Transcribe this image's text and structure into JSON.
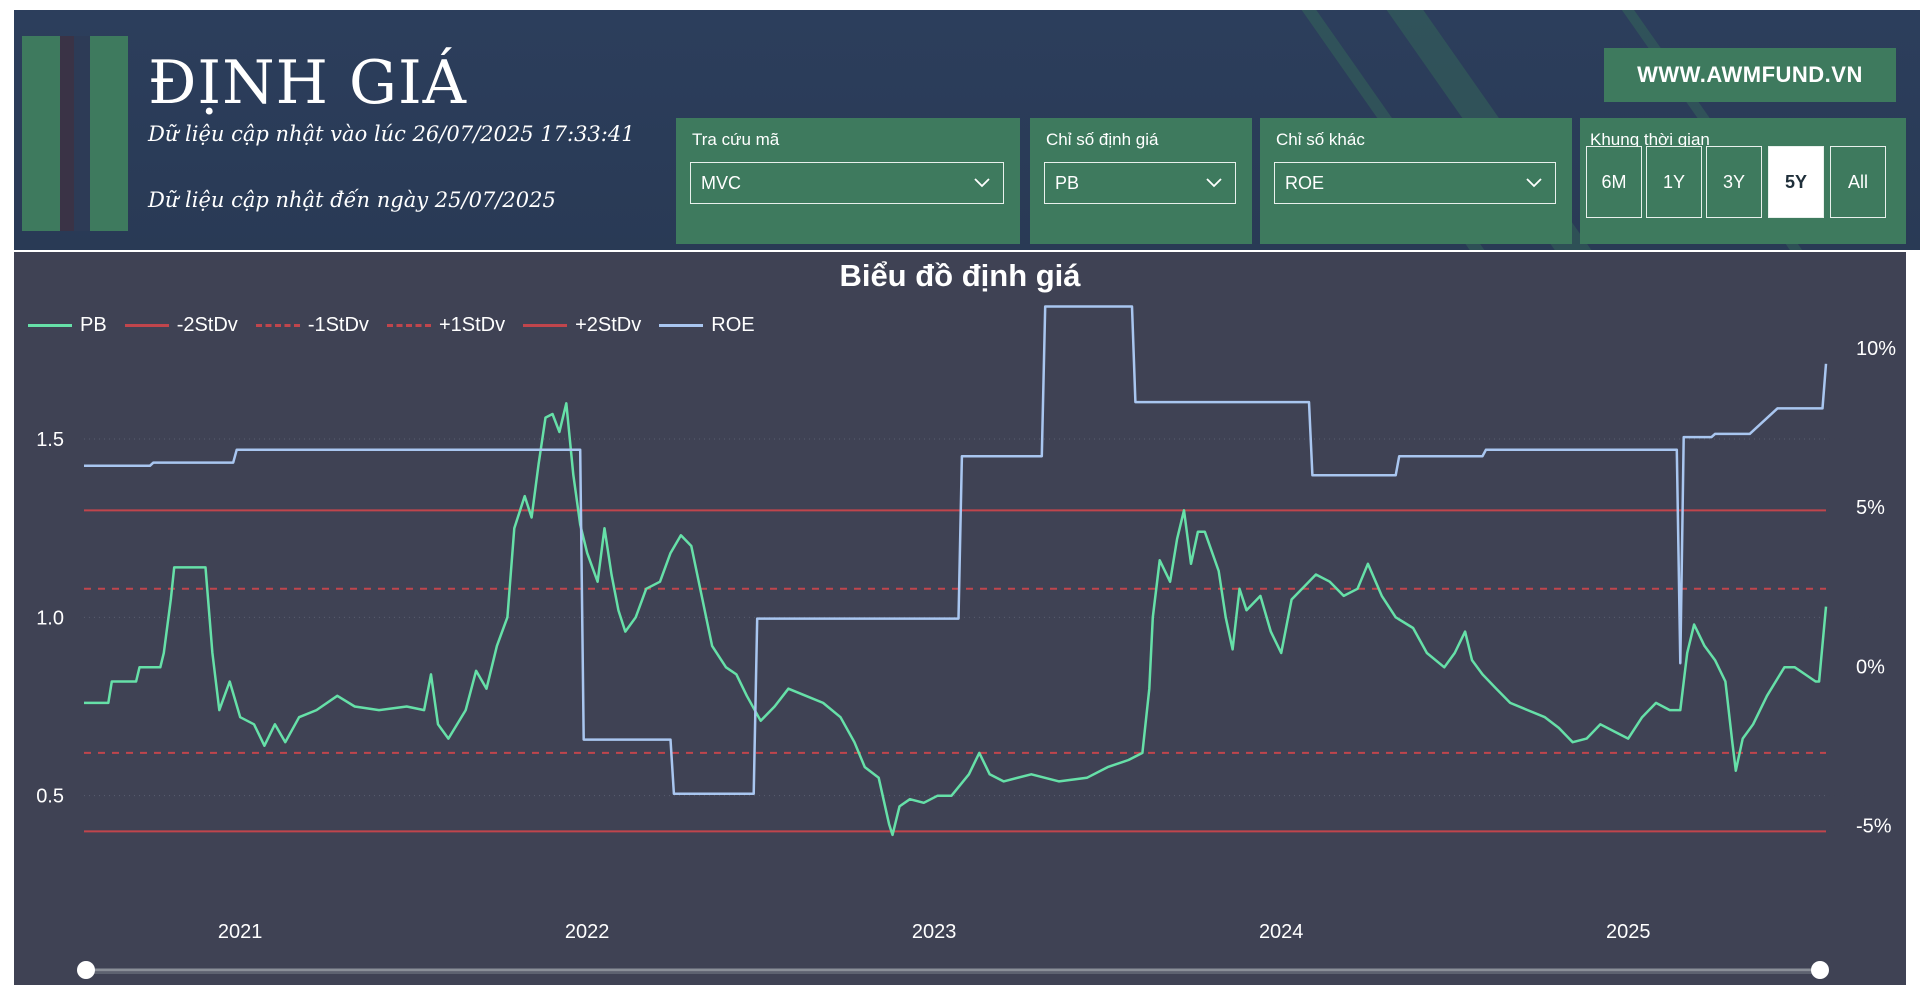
{
  "header": {
    "title": "ĐỊNH GIÁ",
    "updated_at": "Dữ liệu cập nhật vào lúc 26/07/2025 17:33:41",
    "data_until": "Dữ liệu cập nhật đến ngày 25/07/2025",
    "site": "WWW.AWMFUND.VN"
  },
  "colors": {
    "header_bg": "#2c3e5c",
    "panel_green": "#3e7a5e",
    "chart_bg": "#3f4254",
    "pb_line": "#66e0a8",
    "roe_line": "#a9c6f0",
    "stdev_line": "#c0454c"
  },
  "filters": {
    "ticker": {
      "label": "Tra cứu mã",
      "value": "MVC",
      "icon": "chevron-down-icon"
    },
    "valuation": {
      "label": "Chỉ số định giá",
      "value": "PB",
      "icon": "chevron-down-icon"
    },
    "other": {
      "label": "Chỉ số khác",
      "value": "ROE",
      "icon": "chevron-down-icon"
    },
    "timeframe": {
      "label": "Khung thời gian",
      "options": [
        "6M",
        "1Y",
        "3Y",
        "5Y",
        "All"
      ],
      "selected": "5Y"
    }
  },
  "chart_data": {
    "type": "line",
    "title": "Biểu đồ định giá",
    "legend": [
      {
        "name": "PB",
        "style": "solid",
        "color": "#66e0a8"
      },
      {
        "name": "-2StDv",
        "style": "solid",
        "color": "#c0454c"
      },
      {
        "name": "-1StDv",
        "style": "dashed",
        "color": "#c0454c"
      },
      {
        "name": "+1StDv",
        "style": "dashed",
        "color": "#c0454c"
      },
      {
        "name": "+2StDv",
        "style": "solid",
        "color": "#c0454c"
      },
      {
        "name": "ROE",
        "style": "solid",
        "color": "#a9c6f0"
      }
    ],
    "legend_position": "top-left",
    "x_ticks": [
      "2021",
      "2022",
      "2023",
      "2024",
      "2025"
    ],
    "x_range": [
      2020.55,
      2025.57
    ],
    "y_left": {
      "ticks": [
        0.5,
        1.0,
        1.5
      ],
      "tick_labels": [
        "0.5",
        "1.0",
        "1.5"
      ],
      "range": [
        0.3,
        1.8
      ]
    },
    "y_right": {
      "ticks": [
        -5,
        0,
        5,
        10
      ],
      "tick_labels": [
        "-5%",
        "0%",
        "5%",
        "10%"
      ],
      "range": [
        -6.3,
        10.5
      ]
    },
    "bands": {
      "-2StDv": 0.4,
      "-1StDv": 0.62,
      "+1StDv": 1.08,
      "+2StDv": 1.3
    },
    "grid": false,
    "series": [
      {
        "name": "PB",
        "axis": "left",
        "points": [
          [
            2020.55,
            0.76
          ],
          [
            2020.62,
            0.76
          ],
          [
            2020.63,
            0.82
          ],
          [
            2020.7,
            0.82
          ],
          [
            2020.71,
            0.86
          ],
          [
            2020.77,
            0.86
          ],
          [
            2020.78,
            0.9
          ],
          [
            2020.8,
            1.05
          ],
          [
            2020.81,
            1.14
          ],
          [
            2020.9,
            1.14
          ],
          [
            2020.92,
            0.9
          ],
          [
            2020.94,
            0.74
          ],
          [
            2020.97,
            0.82
          ],
          [
            2021.0,
            0.72
          ],
          [
            2021.04,
            0.7
          ],
          [
            2021.07,
            0.64
          ],
          [
            2021.1,
            0.7
          ],
          [
            2021.13,
            0.65
          ],
          [
            2021.17,
            0.72
          ],
          [
            2021.22,
            0.74
          ],
          [
            2021.28,
            0.78
          ],
          [
            2021.33,
            0.75
          ],
          [
            2021.4,
            0.74
          ],
          [
            2021.48,
            0.75
          ],
          [
            2021.53,
            0.74
          ],
          [
            2021.55,
            0.84
          ],
          [
            2021.57,
            0.7
          ],
          [
            2021.6,
            0.66
          ],
          [
            2021.65,
            0.74
          ],
          [
            2021.68,
            0.85
          ],
          [
            2021.71,
            0.8
          ],
          [
            2021.74,
            0.92
          ],
          [
            2021.77,
            1.0
          ],
          [
            2021.79,
            1.25
          ],
          [
            2021.82,
            1.34
          ],
          [
            2021.84,
            1.28
          ],
          [
            2021.86,
            1.43
          ],
          [
            2021.88,
            1.56
          ],
          [
            2021.9,
            1.57
          ],
          [
            2021.92,
            1.52
          ],
          [
            2021.94,
            1.6
          ],
          [
            2021.96,
            1.4
          ],
          [
            2021.98,
            1.26
          ],
          [
            2022.0,
            1.18
          ],
          [
            2022.03,
            1.1
          ],
          [
            2022.05,
            1.25
          ],
          [
            2022.07,
            1.12
          ],
          [
            2022.09,
            1.02
          ],
          [
            2022.11,
            0.96
          ],
          [
            2022.14,
            1.0
          ],
          [
            2022.17,
            1.08
          ],
          [
            2022.21,
            1.1
          ],
          [
            2022.24,
            1.18
          ],
          [
            2022.27,
            1.23
          ],
          [
            2022.3,
            1.2
          ],
          [
            2022.33,
            1.06
          ],
          [
            2022.36,
            0.92
          ],
          [
            2022.4,
            0.86
          ],
          [
            2022.43,
            0.84
          ],
          [
            2022.46,
            0.78
          ],
          [
            2022.5,
            0.71
          ],
          [
            2022.54,
            0.75
          ],
          [
            2022.58,
            0.8
          ],
          [
            2022.63,
            0.78
          ],
          [
            2022.68,
            0.76
          ],
          [
            2022.73,
            0.72
          ],
          [
            2022.77,
            0.65
          ],
          [
            2022.8,
            0.58
          ],
          [
            2022.84,
            0.55
          ],
          [
            2022.87,
            0.42
          ],
          [
            2022.88,
            0.39
          ],
          [
            2022.9,
            0.47
          ],
          [
            2022.93,
            0.49
          ],
          [
            2022.97,
            0.48
          ],
          [
            2023.01,
            0.5
          ],
          [
            2023.05,
            0.5
          ],
          [
            2023.1,
            0.56
          ],
          [
            2023.13,
            0.62
          ],
          [
            2023.16,
            0.56
          ],
          [
            2023.2,
            0.54
          ],
          [
            2023.28,
            0.56
          ],
          [
            2023.36,
            0.54
          ],
          [
            2023.44,
            0.55
          ],
          [
            2023.5,
            0.58
          ],
          [
            2023.56,
            0.6
          ],
          [
            2023.6,
            0.62
          ],
          [
            2023.62,
            0.8
          ],
          [
            2023.63,
            1.0
          ],
          [
            2023.65,
            1.16
          ],
          [
            2023.68,
            1.1
          ],
          [
            2023.7,
            1.22
          ],
          [
            2023.72,
            1.3
          ],
          [
            2023.74,
            1.15
          ],
          [
            2023.76,
            1.24
          ],
          [
            2023.78,
            1.24
          ],
          [
            2023.82,
            1.13
          ],
          [
            2023.84,
            1.0
          ],
          [
            2023.86,
            0.91
          ],
          [
            2023.88,
            1.08
          ],
          [
            2023.9,
            1.02
          ],
          [
            2023.94,
            1.06
          ],
          [
            2023.97,
            0.96
          ],
          [
            2024.0,
            0.9
          ],
          [
            2024.03,
            1.05
          ],
          [
            2024.07,
            1.09
          ],
          [
            2024.1,
            1.12
          ],
          [
            2024.14,
            1.1
          ],
          [
            2024.18,
            1.06
          ],
          [
            2024.22,
            1.08
          ],
          [
            2024.25,
            1.15
          ],
          [
            2024.29,
            1.06
          ],
          [
            2024.33,
            1.0
          ],
          [
            2024.38,
            0.97
          ],
          [
            2024.42,
            0.9
          ],
          [
            2024.47,
            0.86
          ],
          [
            2024.5,
            0.9
          ],
          [
            2024.53,
            0.96
          ],
          [
            2024.55,
            0.88
          ],
          [
            2024.58,
            0.84
          ],
          [
            2024.62,
            0.8
          ],
          [
            2024.66,
            0.76
          ],
          [
            2024.71,
            0.74
          ],
          [
            2024.76,
            0.72
          ],
          [
            2024.8,
            0.69
          ],
          [
            2024.84,
            0.65
          ],
          [
            2024.88,
            0.66
          ],
          [
            2024.92,
            0.7
          ],
          [
            2024.96,
            0.68
          ],
          [
            2025.0,
            0.66
          ],
          [
            2025.04,
            0.72
          ],
          [
            2025.08,
            0.76
          ],
          [
            2025.12,
            0.74
          ],
          [
            2025.15,
            0.74
          ],
          [
            2025.17,
            0.9
          ],
          [
            2025.19,
            0.98
          ],
          [
            2025.22,
            0.92
          ],
          [
            2025.25,
            0.88
          ],
          [
            2025.28,
            0.82
          ],
          [
            2025.3,
            0.65
          ],
          [
            2025.31,
            0.57
          ],
          [
            2025.33,
            0.66
          ],
          [
            2025.36,
            0.7
          ],
          [
            2025.4,
            0.78
          ],
          [
            2025.45,
            0.86
          ],
          [
            2025.48,
            0.86
          ],
          [
            2025.51,
            0.84
          ],
          [
            2025.54,
            0.82
          ],
          [
            2025.55,
            0.82
          ],
          [
            2025.57,
            1.03
          ]
        ]
      },
      {
        "name": "ROE",
        "axis": "right",
        "points": [
          [
            2020.55,
            6.3
          ],
          [
            2020.74,
            6.3
          ],
          [
            2020.75,
            6.4
          ],
          [
            2020.98,
            6.4
          ],
          [
            2020.99,
            6.8
          ],
          [
            2021.98,
            6.8
          ],
          [
            2021.99,
            -2.3
          ],
          [
            2022.24,
            -2.3
          ],
          [
            2022.25,
            -4.0
          ],
          [
            2022.48,
            -4.0
          ],
          [
            2022.49,
            1.5
          ],
          [
            2023.07,
            1.5
          ],
          [
            2023.08,
            6.6
          ],
          [
            2023.31,
            6.6
          ],
          [
            2023.32,
            11.3
          ],
          [
            2023.57,
            11.3
          ],
          [
            2023.58,
            8.3
          ],
          [
            2024.08,
            8.3
          ],
          [
            2024.09,
            6.0
          ],
          [
            2024.33,
            6.0
          ],
          [
            2024.34,
            6.6
          ],
          [
            2024.58,
            6.6
          ],
          [
            2024.59,
            6.8
          ],
          [
            2025.14,
            6.8
          ],
          [
            2025.15,
            0.1
          ],
          [
            2025.16,
            7.2
          ],
          [
            2025.24,
            7.2
          ],
          [
            2025.25,
            7.3
          ],
          [
            2025.35,
            7.3
          ],
          [
            2025.43,
            8.1
          ],
          [
            2025.56,
            8.1
          ],
          [
            2025.57,
            9.5
          ]
        ]
      }
    ]
  }
}
